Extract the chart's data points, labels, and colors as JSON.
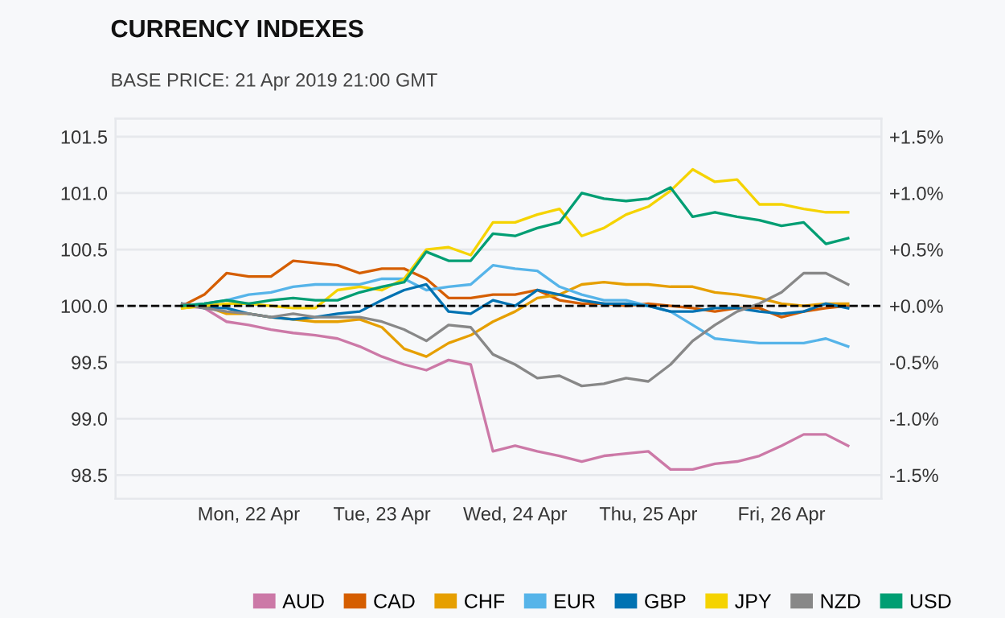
{
  "chart_data": {
    "type": "line",
    "title": "CURRENCY INDEXES",
    "subtitle": "BASE PRICE: 21 Apr 2019 21:00 GMT",
    "x": [
      "2019-04-21T21:00",
      "2019-04-22T01:00",
      "2019-04-22T05:00",
      "2019-04-22T09:00",
      "2019-04-22T13:00",
      "2019-04-22T17:00",
      "2019-04-22T21:00",
      "2019-04-23T01:00",
      "2019-04-23T05:00",
      "2019-04-23T09:00",
      "2019-04-23T13:00",
      "2019-04-23T17:00",
      "2019-04-23T21:00",
      "2019-04-24T01:00",
      "2019-04-24T05:00",
      "2019-04-24T09:00",
      "2019-04-24T13:00",
      "2019-04-24T17:00",
      "2019-04-24T21:00",
      "2019-04-25T01:00",
      "2019-04-25T05:00",
      "2019-04-25T09:00",
      "2019-04-25T13:00",
      "2019-04-25T17:00",
      "2019-04-25T21:00",
      "2019-04-26T01:00",
      "2019-04-26T05:00",
      "2019-04-26T09:00",
      "2019-04-26T13:00",
      "2019-04-26T17:00",
      "2019-04-26T21:00"
    ],
    "series": [
      {
        "name": "AUD",
        "color": "#cc79a7",
        "values": [
          100.0,
          99.98,
          99.86,
          99.83,
          99.79,
          99.76,
          99.74,
          99.71,
          99.64,
          99.55,
          99.48,
          99.43,
          99.52,
          99.48,
          98.71,
          98.76,
          98.71,
          98.67,
          98.62,
          98.67,
          98.69,
          98.71,
          98.55,
          98.55,
          98.6,
          98.62,
          98.67,
          98.76,
          98.86,
          98.86,
          98.76
        ]
      },
      {
        "name": "CAD",
        "color": "#d55e00",
        "values": [
          100.0,
          100.1,
          100.29,
          100.26,
          100.26,
          100.4,
          100.38,
          100.36,
          100.29,
          100.33,
          100.33,
          100.24,
          100.07,
          100.07,
          100.1,
          100.1,
          100.14,
          100.05,
          100.02,
          100.02,
          100.0,
          100.02,
          100.0,
          99.98,
          99.95,
          99.98,
          99.98,
          99.9,
          99.95,
          99.98,
          100.0
        ]
      },
      {
        "name": "CHF",
        "color": "#e69f00",
        "values": [
          99.98,
          100.0,
          99.93,
          99.93,
          99.9,
          99.88,
          99.86,
          99.86,
          99.88,
          99.81,
          99.62,
          99.55,
          99.67,
          99.74,
          99.86,
          99.95,
          100.07,
          100.1,
          100.19,
          100.21,
          100.19,
          100.19,
          100.17,
          100.17,
          100.12,
          100.1,
          100.07,
          100.02,
          100.0,
          100.02,
          100.02
        ]
      },
      {
        "name": "EUR",
        "color": "#56b4e9",
        "values": [
          100.0,
          100.02,
          100.05,
          100.1,
          100.12,
          100.17,
          100.19,
          100.19,
          100.19,
          100.24,
          100.24,
          100.14,
          100.17,
          100.19,
          100.36,
          100.33,
          100.31,
          100.17,
          100.1,
          100.05,
          100.05,
          100.0,
          99.95,
          99.83,
          99.71,
          99.69,
          99.67,
          99.67,
          99.67,
          99.71,
          99.64
        ]
      },
      {
        "name": "GBP",
        "color": "#0072b2",
        "values": [
          100.02,
          99.98,
          99.98,
          99.93,
          99.9,
          99.88,
          99.9,
          99.93,
          99.95,
          100.05,
          100.14,
          100.19,
          99.95,
          99.93,
          100.05,
          100.0,
          100.14,
          100.1,
          100.05,
          100.02,
          100.02,
          100.0,
          99.95,
          99.95,
          99.98,
          99.98,
          99.95,
          99.93,
          99.95,
          100.02,
          99.98
        ]
      },
      {
        "name": "JPY",
        "color": "#f5d300",
        "values": [
          99.98,
          100.0,
          100.02,
          100.02,
          100.0,
          99.98,
          99.98,
          100.14,
          100.17,
          100.14,
          100.24,
          100.5,
          100.52,
          100.45,
          100.74,
          100.74,
          100.81,
          100.86,
          100.62,
          100.69,
          100.81,
          100.88,
          101.02,
          101.21,
          101.1,
          101.12,
          100.9,
          100.9,
          100.86,
          100.83,
          100.83
        ]
      },
      {
        "name": "NZD",
        "color": "#888888",
        "values": [
          100.02,
          99.98,
          99.95,
          99.93,
          99.9,
          99.93,
          99.9,
          99.9,
          99.9,
          99.86,
          99.79,
          99.69,
          99.83,
          99.81,
          99.57,
          99.48,
          99.36,
          99.38,
          99.29,
          99.31,
          99.36,
          99.33,
          99.48,
          99.69,
          99.83,
          99.95,
          100.02,
          100.12,
          100.29,
          100.29,
          100.19
        ]
      },
      {
        "name": "USD",
        "color": "#009e73",
        "values": [
          100.0,
          100.02,
          100.05,
          100.02,
          100.05,
          100.07,
          100.05,
          100.05,
          100.12,
          100.17,
          100.21,
          100.48,
          100.4,
          100.4,
          100.64,
          100.62,
          100.69,
          100.74,
          101.0,
          100.95,
          100.93,
          100.95,
          101.05,
          100.79,
          100.83,
          100.79,
          100.76,
          100.71,
          100.74,
          100.55,
          100.6
        ]
      }
    ],
    "xlim": [
      "2019-04-21T09:00",
      "2019-04-27T03:00"
    ],
    "xticks": [
      {
        "value": "2019-04-22T09:00",
        "label": "Mon, 22 Apr"
      },
      {
        "value": "2019-04-23T09:00",
        "label": "Tue, 23 Apr"
      },
      {
        "value": "2019-04-24T09:00",
        "label": "Wed, 24 Apr"
      },
      {
        "value": "2019-04-25T09:00",
        "label": "Thu, 25 Apr"
      },
      {
        "value": "2019-04-26T09:00",
        "label": "Fri, 26 Apr"
      }
    ],
    "ylim": [
      98.29,
      101.66
    ],
    "yticks": [
      {
        "value": 98.5,
        "label": "98.5"
      },
      {
        "value": 99.0,
        "label": "99.0"
      },
      {
        "value": 99.5,
        "label": "99.5"
      },
      {
        "value": 100.0,
        "label": "100.0"
      },
      {
        "value": 100.5,
        "label": "100.5"
      },
      {
        "value": 101.0,
        "label": "101.0"
      },
      {
        "value": 101.5,
        "label": "101.5"
      }
    ],
    "y2lim": [
      -1.71,
      1.66
    ],
    "y2ticks": [
      {
        "value": -1.5,
        "label": "-1.5%"
      },
      {
        "value": -1.0,
        "label": "-1.0%"
      },
      {
        "value": -0.5,
        "label": "-0.5%"
      },
      {
        "value": 0.0,
        "label": "+0.0%"
      },
      {
        "value": 0.5,
        "label": "+0.5%"
      },
      {
        "value": 1.0,
        "label": "+1.0%"
      },
      {
        "value": 1.5,
        "label": "+1.5%"
      }
    ],
    "ref_lines": [
      {
        "axis": "y",
        "value": 100.0,
        "color": "#000000",
        "line_style": "dashed"
      }
    ],
    "grid": true,
    "legend": "bottom",
    "marker": "none",
    "line_style": "solid"
  }
}
